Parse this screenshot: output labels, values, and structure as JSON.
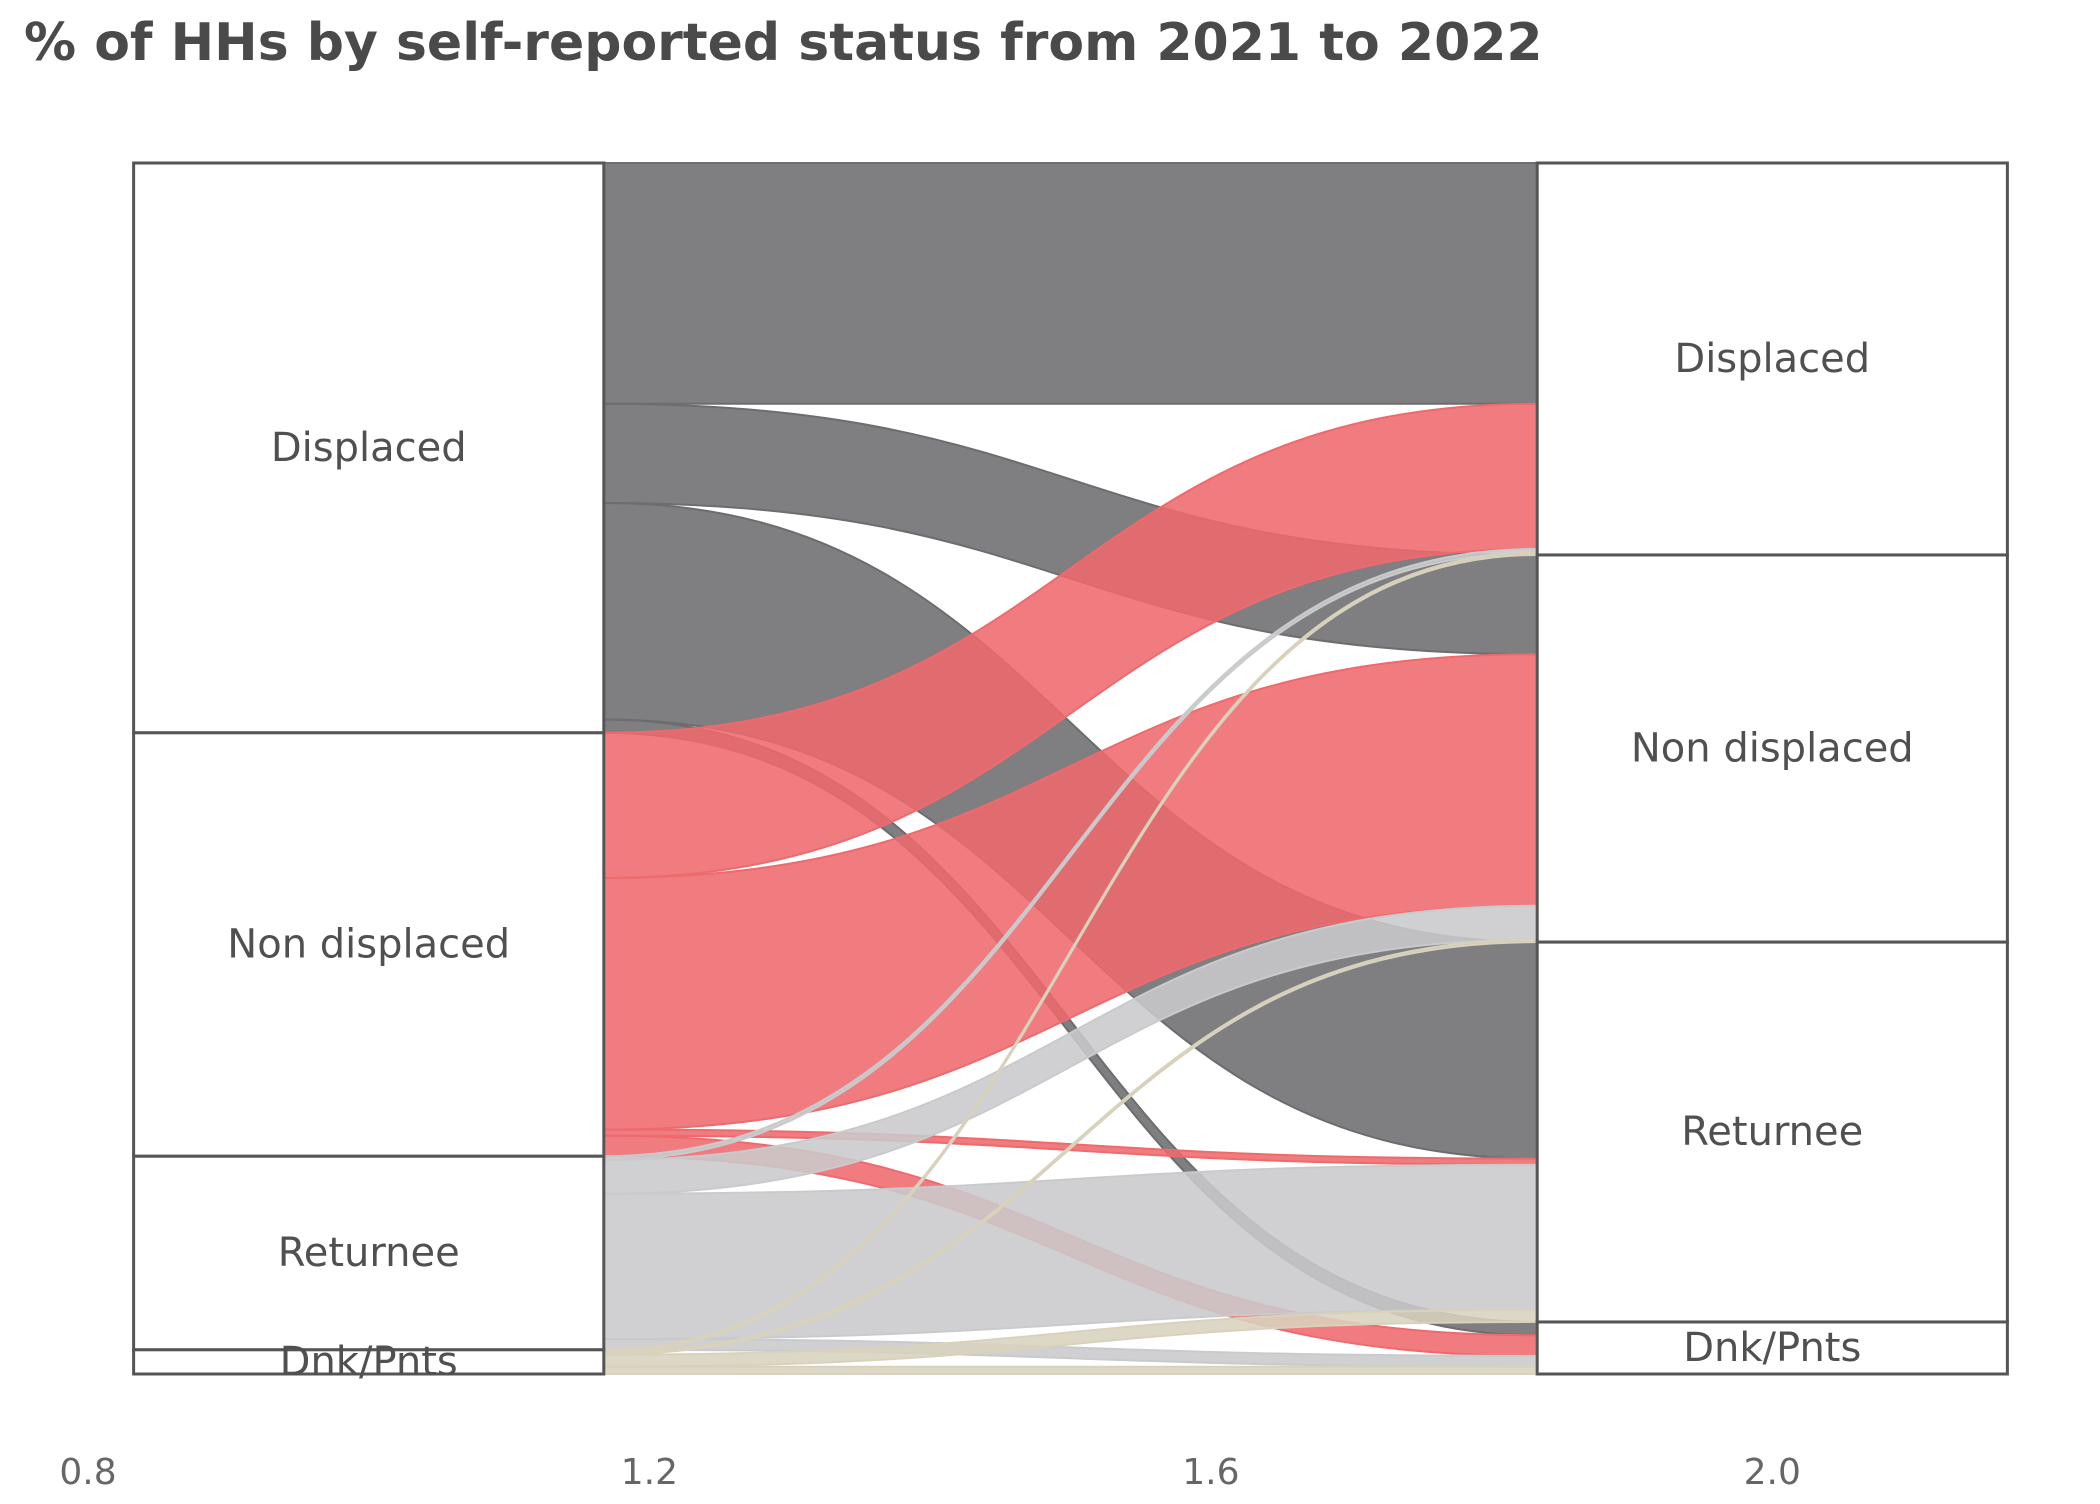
{
  "chart_data": {
    "type": "alluvial",
    "title": "% of HHs by self-reported status from 2021 to 2022",
    "categories": [
      "Displaced",
      "Non displaced",
      "Returnee",
      "Dnk/Pnts"
    ],
    "series": [
      {
        "name": "Displaced",
        "color": "#6d6c6f",
        "values": [
          19.9,
          8.2,
          17.9,
          1.1
        ]
      },
      {
        "name": "Non displaced",
        "color": "#ee6a6d",
        "values": [
          12.0,
          20.8,
          0.5,
          1.7
        ]
      },
      {
        "name": "Returnee",
        "color": "#c9cacc",
        "values": [
          0.3,
          2.8,
          12.0,
          0.9
        ]
      },
      {
        "name": "Dnk/Pnts",
        "color": "#d8d2bd",
        "values": [
          0.2,
          0.2,
          1.0,
          0.6
        ]
      }
    ],
    "xlim": [
      0.8,
      2.2
    ],
    "xticks": [
      0.8,
      1.2,
      1.6,
      {
        "value": 2.0,
        "label": "2.0"
      }
    ]
  }
}
